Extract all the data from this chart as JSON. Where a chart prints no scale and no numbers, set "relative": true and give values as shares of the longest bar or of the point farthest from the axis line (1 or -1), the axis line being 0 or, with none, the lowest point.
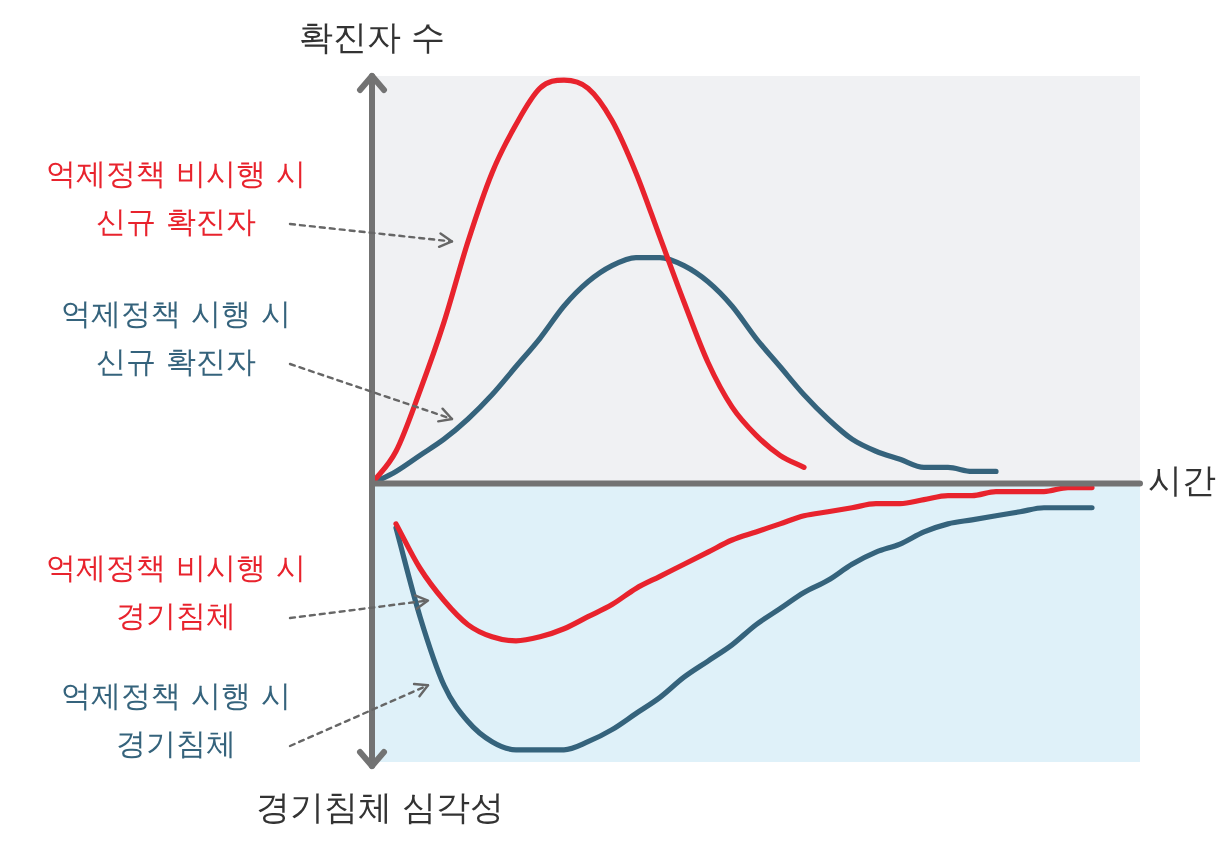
{
  "chart_data": {
    "type": "line",
    "relative": true,
    "ylabel": "확진자 수",
    "xlabel": "시간",
    "annotations": [
      "경기침체 심각성"
    ],
    "categories": [
      null,
      null,
      null,
      null,
      null,
      null,
      null,
      null,
      null,
      null,
      null,
      null,
      null,
      null,
      null,
      null,
      null,
      null,
      null,
      null,
      null,
      null,
      null,
      null,
      null,
      null,
      null,
      null,
      null,
      null,
      null,
      null
    ],
    "series": [
      {
        "name": "억제정책 비시행 시\n신규 확진자",
        "color": "#e8232d",
        "values": [
          0,
          0.08,
          0.23,
          0.4,
          0.6,
          0.77,
          0.89,
          0.98,
          1,
          0.98,
          0.9,
          0.77,
          0.61,
          0.45,
          0.3,
          0.19,
          0.12,
          0.07,
          0.04,
          null,
          null,
          null,
          null,
          null,
          null,
          null,
          null,
          null,
          null,
          null,
          null,
          null
        ]
      },
      {
        "name": "억제정책 시행 시\n신규 확진자",
        "color": "#35637c",
        "values": [
          0,
          0.03,
          0.07,
          0.11,
          0.16,
          0.22,
          0.29,
          0.36,
          0.44,
          0.5,
          0.54,
          0.56,
          0.56,
          0.54,
          0.5,
          0.44,
          0.36,
          0.29,
          0.22,
          0.16,
          0.11,
          0.08,
          0.06,
          0.04,
          0.04,
          0.03,
          0.03,
          null,
          null,
          null,
          null,
          null
        ]
      },
      {
        "name": "억제정책 비시행 시\n경기침체",
        "color": "#e8232d",
        "values": [
          null,
          -0.1,
          -0.21,
          -0.29,
          -0.35,
          -0.38,
          -0.39,
          -0.38,
          -0.36,
          -0.33,
          -0.3,
          -0.26,
          -0.23,
          -0.2,
          -0.17,
          -0.14,
          -0.12,
          -0.1,
          -0.08,
          -0.07,
          -0.06,
          -0.05,
          -0.05,
          -0.04,
          -0.03,
          -0.03,
          -0.02,
          -0.02,
          -0.02,
          -0.01,
          -0.01,
          null
        ]
      },
      {
        "name": "억제정책 시행 시\n경기침체",
        "color": "#35637c",
        "values": [
          null,
          -0.11,
          -0.33,
          -0.5,
          -0.59,
          -0.64,
          -0.66,
          -0.66,
          -0.66,
          -0.64,
          -0.61,
          -0.57,
          -0.53,
          -0.48,
          -0.44,
          -0.4,
          -0.35,
          -0.31,
          -0.27,
          -0.24,
          -0.2,
          -0.17,
          -0.15,
          -0.12,
          -0.1,
          -0.09,
          -0.08,
          -0.07,
          -0.06,
          -0.06,
          -0.06,
          null
        ]
      }
    ]
  }
}
